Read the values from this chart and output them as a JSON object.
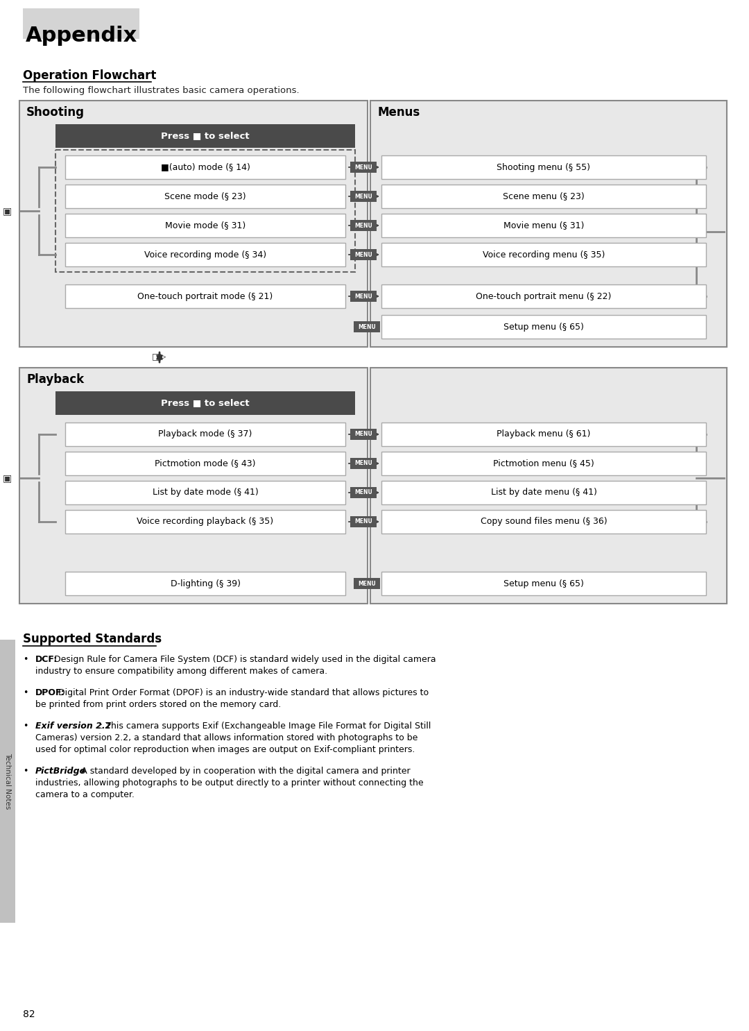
{
  "title": "Appendix",
  "section1_title": "Operation Flowchart",
  "section1_subtitle": "The following flowchart illustrates basic camera operations.",
  "shooting_label": "Shooting",
  "menus_label": "Menus",
  "playback_label": "Playback",
  "shooting_modes": [
    "■(auto) mode (§ 14)",
    "Scene mode (§ 23)",
    "Movie mode (§ 31)",
    "Voice recording mode (§ 34)"
  ],
  "one_touch": "One-touch portrait mode (§ 21)",
  "shooting_menus": [
    "Shooting menu (§ 55)",
    "Scene menu (§ 23)",
    "Movie menu (§ 31)",
    "Voice recording menu (§ 35)"
  ],
  "one_touch_menu": "One-touch portrait menu (§ 22)",
  "setup_menu1": "Setup menu (§ 65)",
  "playback_modes": [
    "Playback mode (§ 37)",
    "Pictmotion mode (§ 43)",
    "List by date mode (§ 41)",
    "Voice recording playback (§ 35)"
  ],
  "d_lighting": "D-lighting (§ 39)",
  "playback_menus": [
    "Playback menu (§ 61)",
    "Pictmotion menu (§ 45)",
    "List by date menu (§ 41)",
    "Copy sound files menu (§ 36)"
  ],
  "setup_menu2": "Setup menu (§ 65)",
  "section2_title": "Supported Standards",
  "std_dcf_bold": "DCF:",
  "std_dcf_rest": " Design Rule for Camera File System (DCF) is standard widely used in the digital camera\nindustry to ensure compatibility among different makes of camera.",
  "std_dpof_bold": "DPOF:",
  "std_dpof_rest": " Digital Print Order Format (DPOF) is an industry-wide standard that allows pictures to\nbe printed from print orders stored on the memory card.",
  "std_exif_bold": "Exif version 2.2",
  "std_exif_rest": ": This camera supports Exif (Exchangeable Image File Format for Digital Still\nCameras) version 2.2, a standard that allows information stored with photographs to be\nused for optimal color reproduction when images are output on Exif-compliant printers.",
  "std_pict_bold": "PictBridge",
  "std_pict_rest": ": A standard developed by in cooperation with the digital camera and printer\nindustries, allowing photographs to be output directly to a printer without connecting the\ncamera to a computer.",
  "page_number": "82",
  "technical_notes": "Technical Notes"
}
